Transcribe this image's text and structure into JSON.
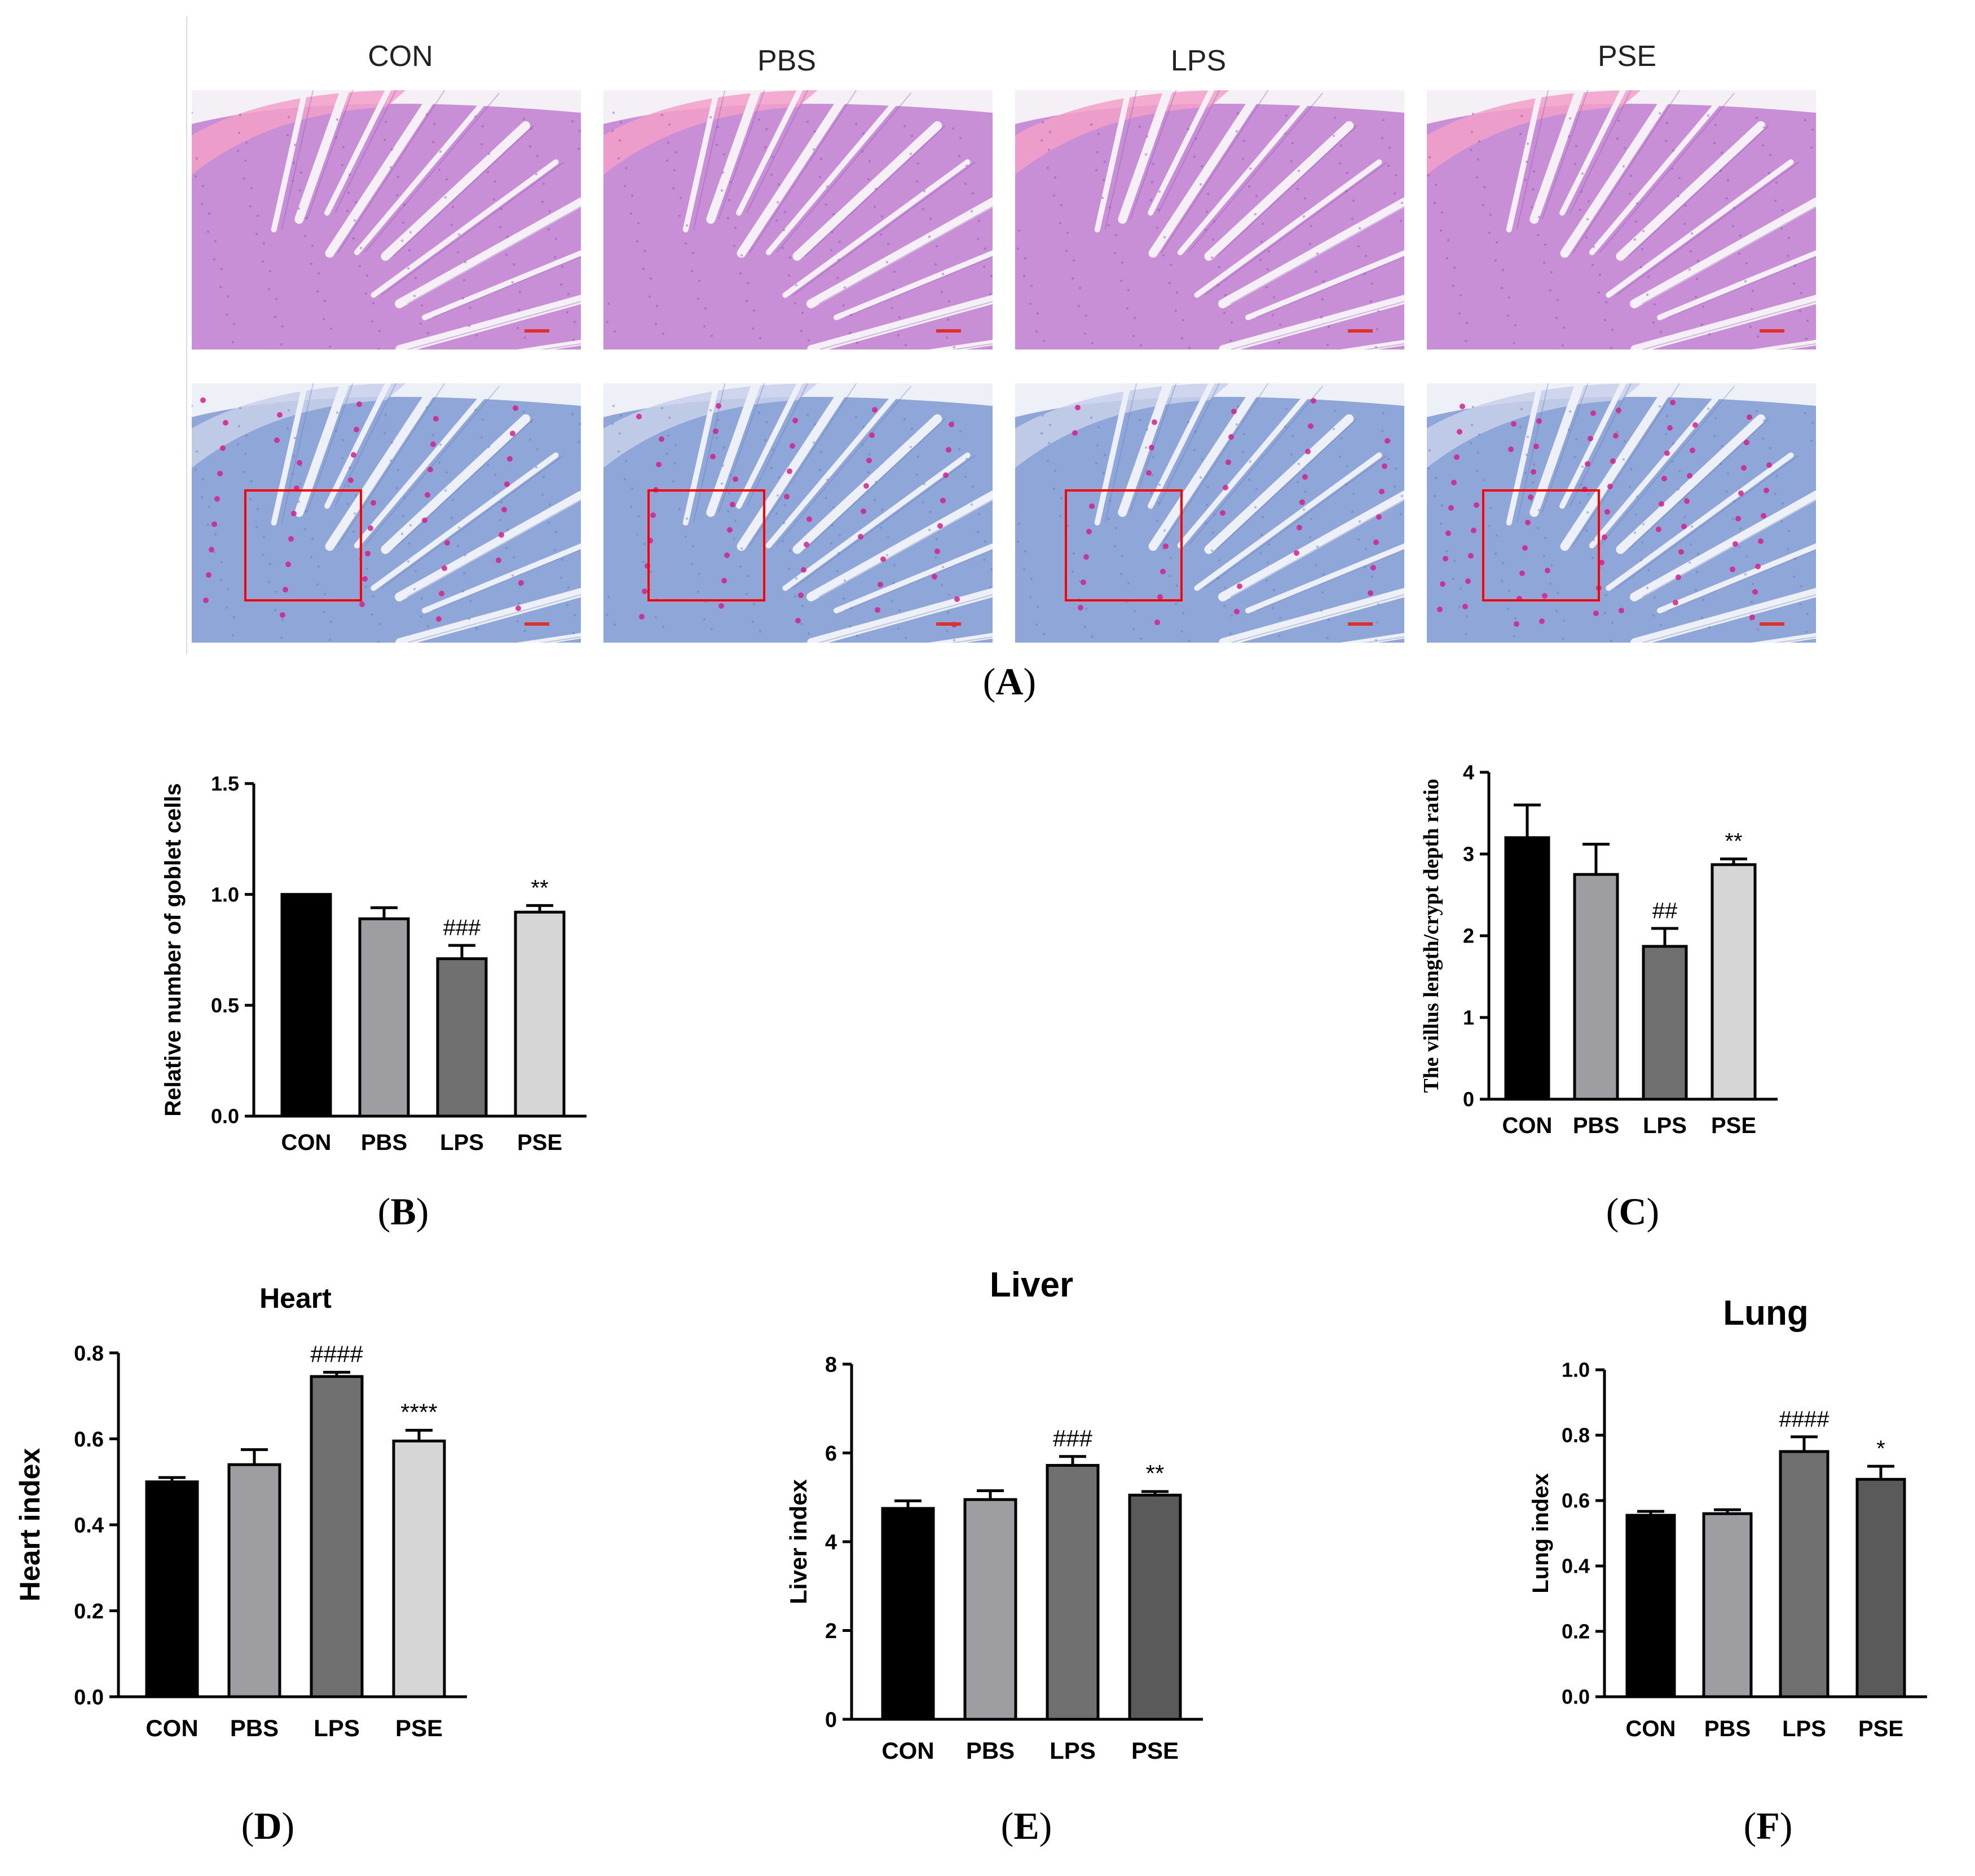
{
  "figure": {
    "histology": {
      "groups": [
        "CON",
        "PBS",
        "LPS",
        "PSE"
      ],
      "he_colors": {
        "base": "#c98fd6",
        "dark": "#8a4fb8",
        "pink": "#f2a0c8",
        "bg": "#f4f0f6"
      },
      "ab_colors": {
        "base": "#8fa6d8",
        "dark": "#5f79b8",
        "dot": "#d6208a",
        "bg": "#eef0f7"
      },
      "box_color": "#ff0000"
    },
    "panel_labels": {
      "A": {
        "open": "(",
        "letter": "A",
        "close": ")"
      },
      "B": {
        "open": "(",
        "letter": "B",
        "close": ")"
      },
      "C": {
        "open": "(",
        "letter": "C",
        "close": ")"
      },
      "D": {
        "open": "(",
        "letter": "D",
        "close": ")"
      },
      "E": {
        "open": "(",
        "letter": "E",
        "close": ")"
      },
      "F": {
        "open": "(",
        "letter": "F",
        "close": ")"
      }
    }
  },
  "chart_data": [
    {
      "id": "B",
      "type": "bar",
      "title": "",
      "ylabel": "Relative number of goblet cells",
      "ylabel_font": "sans",
      "categories": [
        "CON",
        "PBS",
        "LPS",
        "PSE"
      ],
      "values": [
        1.0,
        0.89,
        0.71,
        0.92
      ],
      "errors": [
        0,
        0.05,
        0.06,
        0.03
      ],
      "annotations": [
        "",
        "",
        "###",
        "**"
      ],
      "ylim": [
        0,
        1.5
      ],
      "yticks": [
        0.0,
        0.5,
        1.0,
        1.5
      ],
      "tick_decimals": 1,
      "colors": [
        "#000000",
        "#9d9da2",
        "#707070",
        "#d6d6d6"
      ]
    },
    {
      "id": "C",
      "type": "bar",
      "title": "",
      "ylabel": "The villus length/crypt depth ratio",
      "ylabel_font": "serif",
      "categories": [
        "CON",
        "PBS",
        "LPS",
        "PSE"
      ],
      "values": [
        3.2,
        2.75,
        1.87,
        2.87
      ],
      "errors": [
        0.4,
        0.37,
        0.22,
        0.07
      ],
      "annotations": [
        "",
        "",
        "##",
        "**"
      ],
      "ylim": [
        0,
        4
      ],
      "yticks": [
        0,
        1,
        2,
        3,
        4
      ],
      "tick_decimals": 0,
      "colors": [
        "#000000",
        "#9d9da2",
        "#707070",
        "#d6d6d6"
      ]
    },
    {
      "id": "D",
      "type": "bar",
      "title": "Heart",
      "ylabel": "Heart index",
      "ylabel_font": "sans",
      "categories": [
        "CON",
        "PBS",
        "LPS",
        "PSE"
      ],
      "values": [
        0.5,
        0.54,
        0.745,
        0.595
      ],
      "errors": [
        0.01,
        0.035,
        0.01,
        0.025
      ],
      "annotations": [
        "",
        "",
        "####",
        "****"
      ],
      "ylim": [
        0,
        0.8
      ],
      "yticks": [
        0.0,
        0.2,
        0.4,
        0.6,
        0.8
      ],
      "tick_decimals": 1,
      "colors": [
        "#000000",
        "#9d9da2",
        "#707070",
        "#d6d6d6"
      ]
    },
    {
      "id": "E",
      "type": "bar",
      "title": "Liver",
      "ylabel": "Liver index",
      "ylabel_font": "sans",
      "categories": [
        "CON",
        "PBS",
        "LPS",
        "PSE"
      ],
      "values": [
        4.75,
        4.95,
        5.72,
        5.05
      ],
      "errors": [
        0.17,
        0.2,
        0.2,
        0.08
      ],
      "annotations": [
        "",
        "",
        "###",
        "**"
      ],
      "ylim": [
        0,
        8
      ],
      "yticks": [
        0,
        2,
        4,
        6,
        8
      ],
      "tick_decimals": 0,
      "colors": [
        "#000000",
        "#9d9da2",
        "#707070",
        "#5a5a5a"
      ]
    },
    {
      "id": "F",
      "type": "bar",
      "title": "Lung",
      "ylabel": "Lung index",
      "ylabel_font": "sans",
      "categories": [
        "CON",
        "PBS",
        "LPS",
        "PSE"
      ],
      "values": [
        0.555,
        0.56,
        0.75,
        0.665
      ],
      "errors": [
        0.012,
        0.012,
        0.045,
        0.04
      ],
      "annotations": [
        "",
        "",
        "####",
        "*"
      ],
      "ylim": [
        0,
        1.0
      ],
      "yticks": [
        0.0,
        0.2,
        0.4,
        0.6,
        0.8,
        1.0
      ],
      "tick_decimals": 1,
      "colors": [
        "#000000",
        "#9d9da2",
        "#707070",
        "#5a5a5a"
      ]
    }
  ]
}
